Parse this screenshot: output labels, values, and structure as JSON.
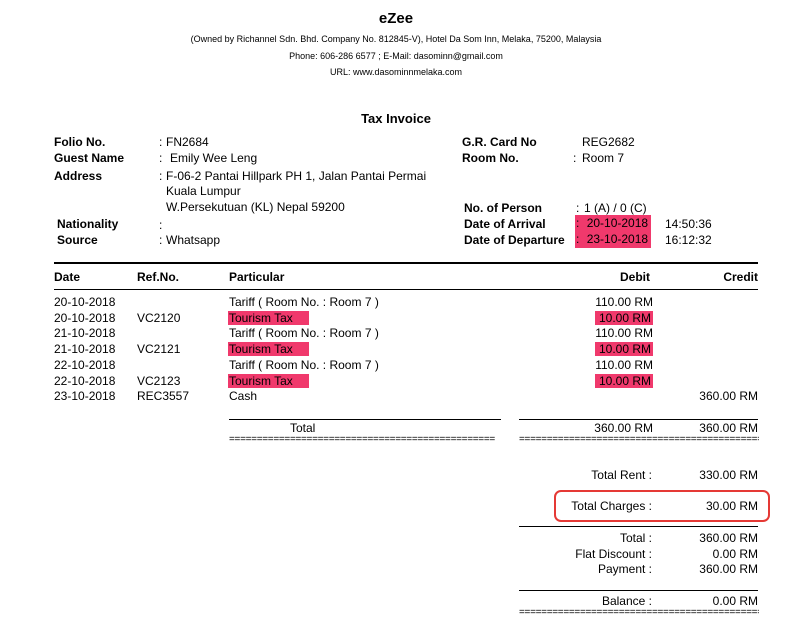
{
  "header": {
    "hotel_name": "eZee",
    "owner_line": "(Owned by Richannel Sdn. Bhd. Company No. 812845-V), Hotel Da Som Inn, Melaka, 75200, Malaysia",
    "contact_line": "Phone: 606-286 6577 ; E-Mail: dasominn@gmail.com",
    "url_line": "URL: www.dasominnmelaka.com"
  },
  "document_title": "Tax Invoice",
  "guest": {
    "folio_label": "Folio No.",
    "folio_value": "FN2684",
    "guest_name_label": "Guest Name",
    "guest_name_value": "Emily Wee Leng",
    "address_label": "Address",
    "address_line1": "F-06-2 Pantai Hillpark PH 1, Jalan Pantai Permai",
    "address_line2": "Kuala Lumpur",
    "address_line3": "W.Persekutuan (KL) Nepal 59200",
    "nationality_label": "Nationality",
    "nationality_value": "",
    "source_label": "Source",
    "source_value": "Whatsapp",
    "grcard_label": "G.R. Card No",
    "grcard_value": "REG2682",
    "room_label": "Room No.",
    "room_value": "Room 7",
    "persons_label": "No. of Person",
    "persons_value": "1 (A) / 0 (C)",
    "arrival_label": "Date of Arrival",
    "arrival_date": "20-10-2018",
    "arrival_time": "14:50:36",
    "departure_label": "Date of Departure",
    "departure_date": "23-10-2018",
    "departure_time": "16:12:32"
  },
  "table": {
    "columns": {
      "date": "Date",
      "ref": "Ref.No.",
      "particular": "Particular",
      "debit": "Debit",
      "credit": "Credit"
    },
    "rows": [
      {
        "date": "20-10-2018",
        "ref": "",
        "particular": "Tariff ( Room No. : Room 7 )",
        "debit": "110.00 RM",
        "credit": "",
        "highlight": false
      },
      {
        "date": "20-10-2018",
        "ref": "VC2120",
        "particular": "Tourism Tax",
        "debit": "10.00 RM",
        "credit": "",
        "highlight": true
      },
      {
        "date": "21-10-2018",
        "ref": "",
        "particular": "Tariff ( Room No. : Room 7 )",
        "debit": "110.00 RM",
        "credit": "",
        "highlight": false
      },
      {
        "date": "21-10-2018",
        "ref": "VC2121",
        "particular": "Tourism Tax",
        "debit": "10.00 RM",
        "credit": "",
        "highlight": true
      },
      {
        "date": "22-10-2018",
        "ref": "",
        "particular": "Tariff ( Room No. : Room 7 )",
        "debit": "110.00 RM",
        "credit": "",
        "highlight": false
      },
      {
        "date": "22-10-2018",
        "ref": "VC2123",
        "particular": "Tourism Tax",
        "debit": "10.00 RM",
        "credit": "",
        "highlight": true
      },
      {
        "date": "23-10-2018",
        "ref": "REC3557",
        "particular": "Cash",
        "debit": "",
        "credit": "360.00 RM",
        "highlight": false
      }
    ],
    "total_label": "Total",
    "total_debit": "360.00 RM",
    "total_credit": "360.00 RM",
    "eq_left": "================================================",
    "eq_right": "================================================"
  },
  "summary": {
    "total_rent_label": "Total Rent :",
    "total_rent_value": "330.00 RM",
    "total_charges_label": "Total Charges :",
    "total_charges_value": "30.00 RM",
    "total_label": "Total :",
    "total_value": "360.00 RM",
    "flat_discount_label": "Flat Discount :",
    "flat_discount_value": "0.00 RM",
    "payment_label": "Payment :",
    "payment_value": "360.00 RM",
    "balance_label": "Balance :",
    "balance_value": "0.00 RM",
    "eq_bottom": "================================================"
  },
  "colors": {
    "highlight": "#f0396c",
    "callout_border": "#e53935"
  }
}
